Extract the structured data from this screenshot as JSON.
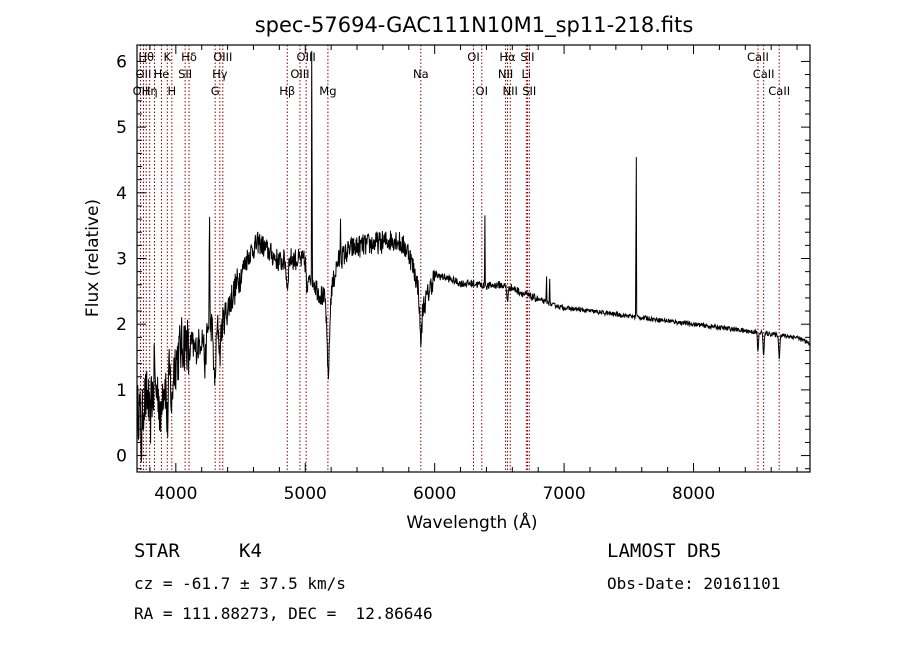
{
  "chart_data": {
    "type": "line",
    "title": "spec-57694-GAC111N10M1_sp11-218.fits",
    "xlabel": "Wavelength (Å)",
    "ylabel": "Flux (relative)",
    "xlim": [
      3700,
      8900
    ],
    "ylim": [
      -0.25,
      6.25
    ],
    "xticks": [
      4000,
      5000,
      6000,
      7000,
      8000
    ],
    "yticks": [
      0,
      1,
      2,
      3,
      4,
      5,
      6
    ],
    "line_color": "#000000",
    "marker_color": "#8b0000",
    "continuum_anchors": [
      [
        3700,
        0.65
      ],
      [
        3760,
        0.85
      ],
      [
        3820,
        0.95
      ],
      [
        3900,
        1.05
      ],
      [
        3960,
        1.25
      ],
      [
        4000,
        1.45
      ],
      [
        4050,
        1.7
      ],
      [
        4100,
        1.75
      ],
      [
        4150,
        1.6
      ],
      [
        4200,
        1.8
      ],
      [
        4280,
        2.0
      ],
      [
        4350,
        1.95
      ],
      [
        4420,
        2.35
      ],
      [
        4500,
        2.75
      ],
      [
        4560,
        3.05
      ],
      [
        4640,
        3.25
      ],
      [
        4720,
        3.1
      ],
      [
        4800,
        2.95
      ],
      [
        4900,
        3.0
      ],
      [
        5000,
        2.95
      ],
      [
        5100,
        2.5
      ],
      [
        5180,
        2.3
      ],
      [
        5250,
        2.95
      ],
      [
        5350,
        3.15
      ],
      [
        5450,
        3.2
      ],
      [
        5600,
        3.25
      ],
      [
        5700,
        3.3
      ],
      [
        5800,
        3.1
      ],
      [
        5870,
        2.6
      ],
      [
        5920,
        2.3
      ],
      [
        6000,
        2.75
      ],
      [
        6100,
        2.7
      ],
      [
        6200,
        2.62
      ],
      [
        6300,
        2.62
      ],
      [
        6400,
        2.58
      ],
      [
        6500,
        2.6
      ],
      [
        6600,
        2.55
      ],
      [
        6700,
        2.45
      ],
      [
        6800,
        2.38
      ],
      [
        6900,
        2.3
      ],
      [
        7000,
        2.25
      ],
      [
        7200,
        2.2
      ],
      [
        7400,
        2.15
      ],
      [
        7600,
        2.1
      ],
      [
        7800,
        2.05
      ],
      [
        8000,
        2.0
      ],
      [
        8200,
        1.95
      ],
      [
        8400,
        1.9
      ],
      [
        8600,
        1.85
      ],
      [
        8800,
        1.8
      ],
      [
        8900,
        1.7
      ]
    ],
    "features": [
      {
        "x": 3734,
        "depth": -0.6,
        "width": 8
      },
      {
        "x": 3800,
        "depth": -0.5,
        "width": 8
      },
      {
        "x": 3835,
        "depth": 0.8,
        "width": 3
      },
      {
        "x": 3880,
        "depth": -0.6,
        "width": 8
      },
      {
        "x": 3934,
        "depth": -0.7,
        "width": 8
      },
      {
        "x": 3969,
        "depth": -0.6,
        "width": 8
      },
      {
        "x": 4102,
        "depth": -0.3,
        "width": 8
      },
      {
        "x": 4226,
        "depth": -0.5,
        "width": 10
      },
      {
        "x": 4260,
        "depth": 1.8,
        "width": 3
      },
      {
        "x": 4300,
        "depth": -0.9,
        "width": 12
      },
      {
        "x": 4340,
        "depth": -0.4,
        "width": 8
      },
      {
        "x": 4861,
        "depth": -0.4,
        "width": 10
      },
      {
        "x": 5015,
        "depth": -0.5,
        "width": 8
      },
      {
        "x": 5051,
        "depth": 4.2,
        "width": 2
      },
      {
        "x": 5172,
        "depth": -0.7,
        "width": 10
      },
      {
        "x": 5183,
        "depth": -0.7,
        "width": 10
      },
      {
        "x": 5273,
        "depth": 0.9,
        "width": 2
      },
      {
        "x": 5893,
        "depth": -0.7,
        "width": 12
      },
      {
        "x": 6388,
        "depth": 1.1,
        "width": 2
      },
      {
        "x": 6563,
        "depth": -0.2,
        "width": 8
      },
      {
        "x": 6864,
        "depth": 0.5,
        "width": 2
      },
      {
        "x": 6888,
        "depth": 0.5,
        "width": 2
      },
      {
        "x": 7557,
        "depth": 3.1,
        "width": 2
      },
      {
        "x": 8498,
        "depth": -0.3,
        "width": 6
      },
      {
        "x": 8542,
        "depth": -0.35,
        "width": 6
      },
      {
        "x": 8662,
        "depth": -0.35,
        "width": 6
      }
    ],
    "line_markers": [
      {
        "wave": 3727,
        "row": 2,
        "label": "OII"
      },
      {
        "wave": 3750,
        "row": 1,
        "label": "OII"
      },
      {
        "wave": 3771,
        "row": 0,
        "label": "Hθ"
      },
      {
        "wave": 3798,
        "row": 2,
        "label": "Hη"
      },
      {
        "wave": 3835,
        "row": 0,
        "label": ""
      },
      {
        "wave": 3889,
        "row": 1,
        "label": "He"
      },
      {
        "wave": 3934,
        "row": 0,
        "label": "K"
      },
      {
        "wave": 3969,
        "row": 2,
        "label": "H"
      },
      {
        "wave": 4072,
        "row": 1,
        "label": "SII"
      },
      {
        "wave": 4102,
        "row": 0,
        "label": "Hδ"
      },
      {
        "wave": 4304,
        "row": 2,
        "label": "G"
      },
      {
        "wave": 4340,
        "row": 1,
        "label": "Hγ"
      },
      {
        "wave": 4363,
        "row": 0,
        "label": "OIII"
      },
      {
        "wave": 4861,
        "row": 2,
        "label": "Hβ"
      },
      {
        "wave": 4959,
        "row": 1,
        "label": "OIII"
      },
      {
        "wave": 5007,
        "row": 0,
        "label": "OIII"
      },
      {
        "wave": 5175,
        "row": 2,
        "label": "Mg"
      },
      {
        "wave": 5893,
        "row": 1,
        "label": "Na"
      },
      {
        "wave": 6300,
        "row": 0,
        "label": "OI"
      },
      {
        "wave": 6364,
        "row": 2,
        "label": "OI"
      },
      {
        "wave": 6548,
        "row": 1,
        "label": "NII"
      },
      {
        "wave": 6563,
        "row": 0,
        "label": "Hα"
      },
      {
        "wave": 6584,
        "row": 2,
        "label": "NII"
      },
      {
        "wave": 6708,
        "row": 1,
        "label": "Li"
      },
      {
        "wave": 6717,
        "row": 0,
        "label": "SII"
      },
      {
        "wave": 6731,
        "row": 2,
        "label": "SII"
      },
      {
        "wave": 8498,
        "row": 0,
        "label": "CaII"
      },
      {
        "wave": 8542,
        "row": 1,
        "label": "CaII"
      },
      {
        "wave": 8662,
        "row": 2,
        "label": "CaII"
      }
    ]
  },
  "info": {
    "class": "STAR",
    "subclass": "K4",
    "survey": "LAMOST DR5",
    "cz": "cz = -61.7 ± 37.5 km/s",
    "obs_date": "Obs-Date: 20161101",
    "coords": "RA = 111.88273, DEC =  12.86646"
  }
}
